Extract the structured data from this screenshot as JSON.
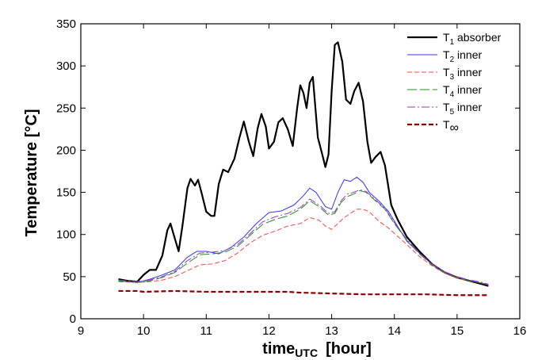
{
  "chart_data": {
    "type": "line",
    "xlabel": "time",
    "xlabel_sub": "UTC",
    "xlabel_unit": "[hour]",
    "ylabel": "Temperature [°C]",
    "xlim": [
      9,
      16
    ],
    "ylim": [
      0,
      350
    ],
    "xticks": [
      "9",
      "10",
      "11",
      "12",
      "13",
      "14",
      "15",
      "16"
    ],
    "yticks": [
      "0",
      "50",
      "100",
      "150",
      "200",
      "250",
      "300",
      "350"
    ],
    "grid": false,
    "legend_position": "top-right",
    "series": [
      {
        "name": "T",
        "name_sub": "1",
        "name_suffix": " absorber",
        "color": "#000000",
        "dash": "solid",
        "width": 2.2,
        "x": [
          9.6,
          9.75,
          9.9,
          10.0,
          10.1,
          10.2,
          10.3,
          10.38,
          10.43,
          10.5,
          10.56,
          10.62,
          10.7,
          10.75,
          10.82,
          10.87,
          10.93,
          11.0,
          11.08,
          11.13,
          11.2,
          11.27,
          11.35,
          11.45,
          11.53,
          11.6,
          11.68,
          11.75,
          11.82,
          11.88,
          11.95,
          12.0,
          12.08,
          12.15,
          12.22,
          12.3,
          12.38,
          12.45,
          12.5,
          12.55,
          12.6,
          12.65,
          12.7,
          12.78,
          12.85,
          12.9,
          12.95,
          13.0,
          13.05,
          13.1,
          13.17,
          13.23,
          13.3,
          13.36,
          13.43,
          13.5,
          13.57,
          13.63,
          13.7,
          13.78,
          13.85,
          13.95,
          14.05,
          14.2,
          14.4,
          14.6,
          14.8,
          15.0,
          15.2,
          15.35,
          15.5
        ],
        "y": [
          47,
          45,
          44,
          52,
          58,
          58,
          75,
          105,
          113,
          95,
          80,
          110,
          155,
          166,
          158,
          165,
          148,
          127,
          122,
          122,
          160,
          177,
          174,
          190,
          215,
          234,
          210,
          193,
          226,
          243,
          228,
          202,
          210,
          233,
          238,
          225,
          205,
          250,
          277,
          268,
          250,
          280,
          287,
          215,
          195,
          180,
          195,
          270,
          325,
          328,
          305,
          260,
          255,
          270,
          280,
          258,
          210,
          185,
          192,
          198,
          182,
          135,
          118,
          97,
          80,
          65,
          55,
          49,
          45,
          42,
          39
        ]
      },
      {
        "name": "T",
        "name_sub": "2",
        "name_suffix": " inner",
        "color": "#3333ff",
        "dash": "solid",
        "width": 1,
        "x": [
          9.6,
          9.9,
          10.1,
          10.3,
          10.5,
          10.7,
          10.85,
          11.0,
          11.2,
          11.4,
          11.6,
          11.8,
          12.0,
          12.2,
          12.4,
          12.55,
          12.65,
          12.75,
          12.9,
          13.0,
          13.1,
          13.2,
          13.3,
          13.4,
          13.5,
          13.6,
          13.75,
          13.9,
          14.05,
          14.2,
          14.4,
          14.6,
          14.8,
          15.0,
          15.2,
          15.35,
          15.5
        ],
        "y": [
          45,
          43,
          47,
          52,
          58,
          73,
          80,
          80,
          77,
          85,
          97,
          113,
          126,
          128,
          135,
          146,
          155,
          150,
          133,
          130,
          150,
          165,
          163,
          168,
          162,
          150,
          140,
          128,
          110,
          92,
          78,
          65,
          55,
          49,
          45,
          43,
          40
        ]
      },
      {
        "name": "T",
        "name_sub": "3",
        "name_suffix": " inner",
        "color": "#ff4444",
        "dash": "6,3",
        "width": 1,
        "x": [
          9.6,
          9.9,
          10.1,
          10.3,
          10.5,
          10.7,
          10.9,
          11.1,
          11.3,
          11.5,
          11.7,
          11.9,
          12.1,
          12.3,
          12.5,
          12.65,
          12.8,
          12.9,
          13.0,
          13.1,
          13.2,
          13.3,
          13.4,
          13.5,
          13.6,
          13.75,
          13.9,
          14.05,
          14.2,
          14.4,
          14.6,
          14.8,
          15.0,
          15.2,
          15.35,
          15.5
        ],
        "y": [
          44,
          43,
          44,
          46,
          50,
          57,
          64,
          65,
          69,
          78,
          90,
          99,
          104,
          110,
          113,
          120,
          117,
          110,
          106,
          113,
          120,
          125,
          130,
          130,
          127,
          116,
          108,
          98,
          88,
          74,
          63,
          54,
          48,
          45,
          43,
          41
        ]
      },
      {
        "name": "T",
        "name_sub": "4",
        "name_suffix": " inner",
        "color": "#228b22",
        "dash": "12,4",
        "width": 1,
        "x": [
          9.6,
          9.9,
          10.1,
          10.3,
          10.5,
          10.7,
          10.9,
          11.1,
          11.3,
          11.5,
          11.7,
          11.9,
          12.1,
          12.3,
          12.5,
          12.65,
          12.8,
          12.95,
          13.05,
          13.15,
          13.25,
          13.35,
          13.45,
          13.55,
          13.7,
          13.85,
          14.0,
          14.2,
          14.4,
          14.6,
          14.8,
          15.0,
          15.2,
          15.35,
          15.5
        ],
        "y": [
          45,
          43,
          45,
          49,
          55,
          66,
          76,
          77,
          79,
          86,
          99,
          112,
          118,
          122,
          130,
          140,
          133,
          123,
          125,
          138,
          145,
          148,
          152,
          150,
          140,
          130,
          113,
          93,
          77,
          64,
          55,
          49,
          45,
          43,
          40
        ]
      },
      {
        "name": "T",
        "name_sub": "5",
        "name_suffix": " inner",
        "color": "#9933cc",
        "dash": "10,3,2,3",
        "width": 1,
        "x": [
          9.6,
          9.9,
          10.1,
          10.3,
          10.5,
          10.7,
          10.9,
          11.1,
          11.3,
          11.5,
          11.7,
          11.9,
          12.1,
          12.3,
          12.5,
          12.65,
          12.8,
          12.95,
          13.05,
          13.15,
          13.25,
          13.35,
          13.45,
          13.55,
          13.7,
          13.85,
          14.0,
          14.2,
          14.4,
          14.6,
          14.8,
          15.0,
          15.2,
          15.35,
          15.5
        ],
        "y": [
          46,
          44,
          46,
          50,
          56,
          69,
          78,
          79,
          81,
          88,
          101,
          115,
          121,
          125,
          132,
          142,
          135,
          125,
          127,
          140,
          148,
          150,
          153,
          151,
          141,
          131,
          114,
          94,
          78,
          65,
          56,
          50,
          46,
          44,
          41
        ]
      },
      {
        "name": "T",
        "name_sub": "∞",
        "name_suffix": "",
        "color": "#8b0000",
        "dash": "6,3",
        "width": 2.2,
        "x": [
          9.6,
          9.9,
          10.0,
          10.5,
          11.0,
          11.5,
          12.0,
          12.3,
          12.5,
          13.0,
          13.5,
          14.0,
          14.5,
          15.0,
          15.5
        ],
        "y": [
          33,
          33,
          32,
          33,
          32,
          32,
          32,
          32,
          31,
          30,
          29,
          29,
          29,
          28,
          28
        ]
      }
    ]
  }
}
